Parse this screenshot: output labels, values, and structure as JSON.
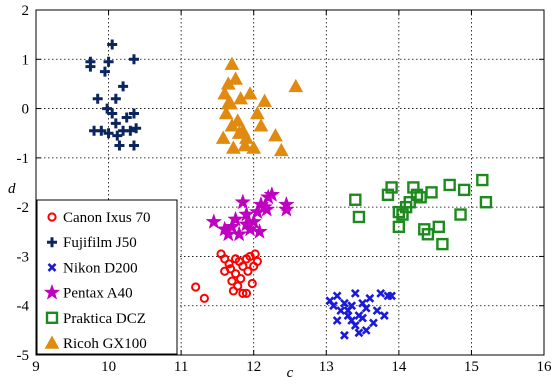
{
  "chart_data": {
    "type": "scatter",
    "title": "",
    "xlabel": "c",
    "ylabel": "d",
    "xlim": [
      9,
      16
    ],
    "ylim": [
      -5,
      2
    ],
    "xticks": [
      "9",
      "10",
      "11",
      "12",
      "13",
      "14",
      "15",
      "16"
    ],
    "yticks": [
      "2",
      "1",
      "0",
      "-1",
      "-2",
      "-3",
      "-4",
      "-5"
    ],
    "grid": true,
    "legend_position": "bottom-left",
    "series": [
      {
        "name": "Canon Ixus 70",
        "color": "#ff0000",
        "marker": "circle",
        "points": [
          [
            11.2,
            -3.62
          ],
          [
            11.32,
            -3.85
          ],
          [
            11.55,
            -2.95
          ],
          [
            11.6,
            -3.05
          ],
          [
            11.66,
            -3.15
          ],
          [
            11.6,
            -3.3
          ],
          [
            11.7,
            -3.5
          ],
          [
            11.75,
            -3.35
          ],
          [
            11.78,
            -3.6
          ],
          [
            11.72,
            -3.7
          ],
          [
            11.85,
            -3.75
          ],
          [
            11.9,
            -3.75
          ],
          [
            11.85,
            -3.2
          ],
          [
            11.9,
            -3.05
          ],
          [
            11.95,
            -3.0
          ],
          [
            11.82,
            -3.45
          ],
          [
            11.92,
            -3.3
          ],
          [
            12.0,
            -3.2
          ],
          [
            12.05,
            -3.1
          ],
          [
            12.02,
            -2.95
          ],
          [
            11.8,
            -3.1
          ],
          [
            11.68,
            -3.25
          ],
          [
            11.98,
            -3.55
          ],
          [
            11.75,
            -3.05
          ]
        ]
      },
      {
        "name": "Fujifilm J50",
        "color": "#0b2560",
        "marker": "plus",
        "points": [
          [
            9.75,
            0.95
          ],
          [
            9.75,
            0.85
          ],
          [
            10.05,
            1.3
          ],
          [
            10.0,
            0.95
          ],
          [
            10.35,
            1.0
          ],
          [
            9.95,
            0.75
          ],
          [
            9.85,
            0.2
          ],
          [
            9.98,
            0.0
          ],
          [
            10.2,
            0.45
          ],
          [
            10.1,
            0.2
          ],
          [
            10.05,
            -0.1
          ],
          [
            10.1,
            -0.3
          ],
          [
            9.9,
            -0.45
          ],
          [
            10.0,
            -0.5
          ],
          [
            10.2,
            -0.45
          ],
          [
            10.3,
            -0.45
          ],
          [
            10.35,
            -0.1
          ],
          [
            10.38,
            -0.4
          ],
          [
            10.15,
            -0.75
          ],
          [
            10.35,
            -0.75
          ],
          [
            9.8,
            -0.45
          ],
          [
            10.25,
            -0.18
          ],
          [
            10.12,
            -0.55
          ]
        ]
      },
      {
        "name": "Nikon D200",
        "color": "#1a1adb",
        "marker": "x",
        "points": [
          [
            13.05,
            -3.9
          ],
          [
            13.1,
            -4.0
          ],
          [
            13.15,
            -3.8
          ],
          [
            13.2,
            -4.1
          ],
          [
            13.25,
            -3.95
          ],
          [
            13.3,
            -4.2
          ],
          [
            13.35,
            -4.3
          ],
          [
            13.4,
            -4.4
          ],
          [
            13.45,
            -4.55
          ],
          [
            13.5,
            -4.25
          ],
          [
            13.55,
            -4.05
          ],
          [
            13.6,
            -3.85
          ],
          [
            13.65,
            -4.35
          ],
          [
            13.7,
            -4.1
          ],
          [
            13.75,
            -3.75
          ],
          [
            13.8,
            -4.2
          ],
          [
            13.85,
            -3.8
          ],
          [
            13.9,
            -3.8
          ],
          [
            13.3,
            -4.1
          ],
          [
            13.4,
            -3.75
          ],
          [
            13.45,
            -4.2
          ],
          [
            13.55,
            -4.5
          ],
          [
            13.25,
            -4.6
          ],
          [
            13.35,
            -4.0
          ],
          [
            13.5,
            -3.95
          ],
          [
            13.15,
            -4.3
          ]
        ]
      },
      {
        "name": "Pentax A40",
        "color": "#c000c0",
        "marker": "star",
        "points": [
          [
            11.45,
            -2.3
          ],
          [
            11.6,
            -2.45
          ],
          [
            11.65,
            -2.55
          ],
          [
            11.7,
            -2.4
          ],
          [
            11.8,
            -2.55
          ],
          [
            11.85,
            -1.9
          ],
          [
            11.9,
            -2.15
          ],
          [
            11.95,
            -2.45
          ],
          [
            12.0,
            -2.3
          ],
          [
            12.05,
            -2.1
          ],
          [
            12.1,
            -1.95
          ],
          [
            12.15,
            -2.0
          ],
          [
            12.2,
            -1.8
          ],
          [
            12.25,
            -1.75
          ],
          [
            12.45,
            -1.95
          ],
          [
            12.45,
            -2.05
          ],
          [
            11.75,
            -2.25
          ],
          [
            11.9,
            -2.35
          ],
          [
            12.08,
            -2.5
          ],
          [
            12.18,
            -2.05
          ]
        ]
      },
      {
        "name": "Praktica DCZ",
        "color": "#1e8a1e",
        "marker": "square",
        "points": [
          [
            13.4,
            -1.85
          ],
          [
            13.45,
            -2.2
          ],
          [
            13.85,
            -1.75
          ],
          [
            13.9,
            -1.6
          ],
          [
            14.0,
            -2.1
          ],
          [
            14.0,
            -2.4
          ],
          [
            14.05,
            -2.15
          ],
          [
            14.1,
            -2.0
          ],
          [
            14.15,
            -1.9
          ],
          [
            14.2,
            -1.6
          ],
          [
            14.3,
            -1.8
          ],
          [
            14.35,
            -2.45
          ],
          [
            14.4,
            -2.55
          ],
          [
            14.45,
            -1.7
          ],
          [
            14.55,
            -2.4
          ],
          [
            14.6,
            -2.75
          ],
          [
            14.7,
            -1.55
          ],
          [
            14.85,
            -2.15
          ],
          [
            14.9,
            -1.65
          ],
          [
            15.15,
            -1.45
          ],
          [
            15.2,
            -1.9
          ],
          [
            14.25,
            -1.75
          ]
        ]
      },
      {
        "name": "Ricoh GX100",
        "color": "#e08a10",
        "marker": "triangle",
        "points": [
          [
            11.6,
            0.3
          ],
          [
            11.65,
            0.1
          ],
          [
            11.62,
            -0.1
          ],
          [
            11.58,
            -0.6
          ],
          [
            11.65,
            0.5
          ],
          [
            11.7,
            0.9
          ],
          [
            11.75,
            0.6
          ],
          [
            11.7,
            -0.35
          ],
          [
            11.72,
            -0.8
          ],
          [
            11.8,
            -0.5
          ],
          [
            11.78,
            -0.25
          ],
          [
            11.82,
            0.2
          ],
          [
            11.85,
            -0.45
          ],
          [
            11.88,
            -0.75
          ],
          [
            11.9,
            -0.6
          ],
          [
            11.95,
            0.3
          ],
          [
            12.0,
            -0.8
          ],
          [
            12.05,
            -0.1
          ],
          [
            12.1,
            -0.35
          ],
          [
            12.15,
            0.15
          ],
          [
            12.3,
            -0.55
          ],
          [
            12.38,
            -0.85
          ],
          [
            12.58,
            0.45
          ],
          [
            11.68,
            0.1
          ]
        ]
      }
    ]
  }
}
